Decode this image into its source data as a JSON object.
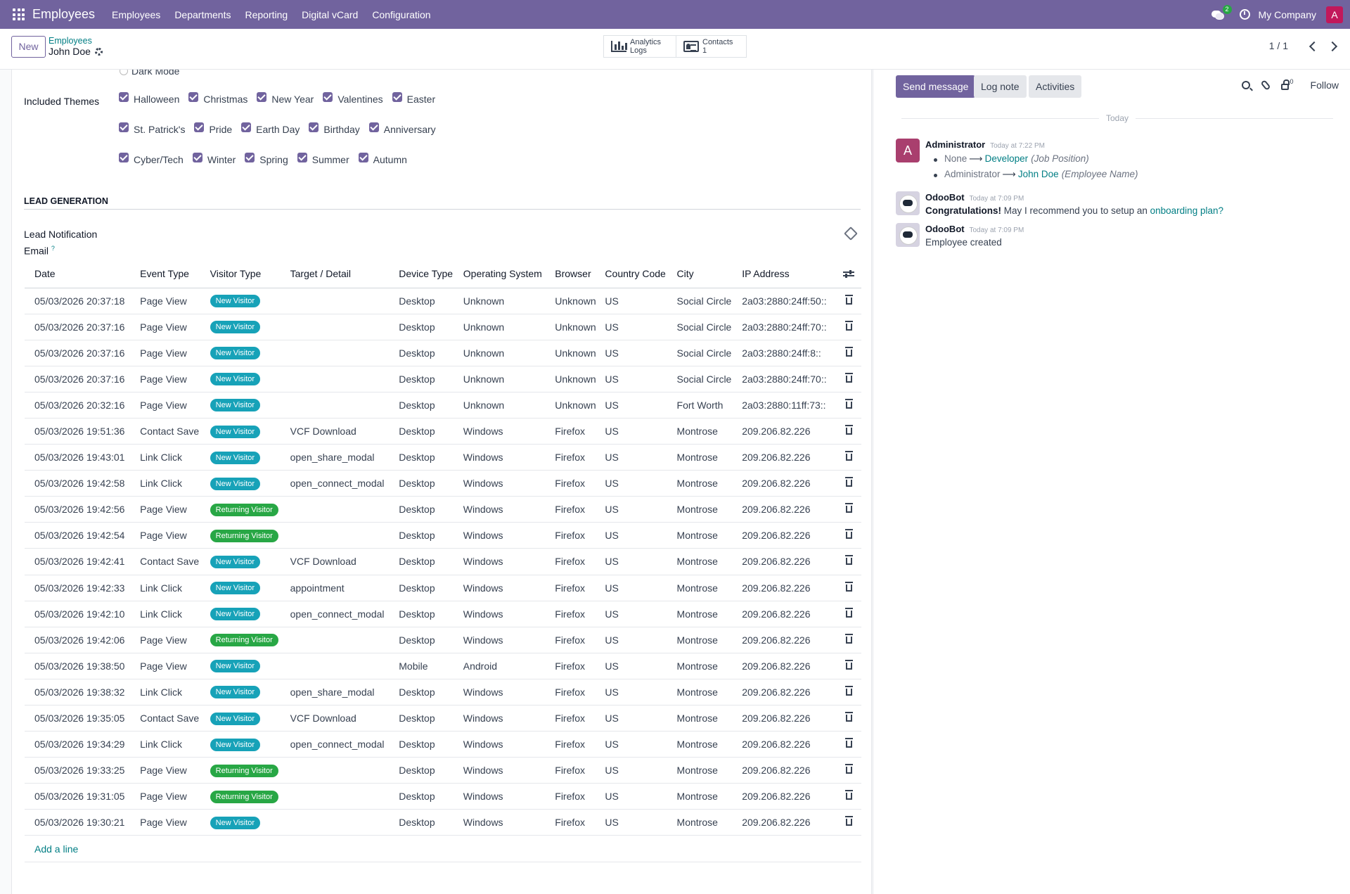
{
  "topbar": {
    "app_name": "Employees",
    "menu": [
      "Employees",
      "Departments",
      "Reporting",
      "Digital vCard",
      "Configuration"
    ],
    "chat_badge": "2",
    "company": "My Company",
    "user_initial": "A"
  },
  "control": {
    "new_label": "New",
    "breadcrumb_parent": "Employees",
    "record_name": "John Doe",
    "smart_buttons": [
      {
        "line1": "Analytics",
        "line2": "Logs"
      },
      {
        "line1": "Contacts",
        "line2": "1"
      }
    ],
    "pager": "1 / 1"
  },
  "form": {
    "dark_mode_label": "Dark Mode",
    "themes_label": "Included Themes",
    "theme_rows": [
      [
        "Halloween",
        "Christmas",
        "New Year",
        "Valentines",
        "Easter"
      ],
      [
        "St. Patrick's",
        "Pride",
        "Earth Day",
        "Birthday",
        "Anniversary"
      ],
      [
        "Cyber/Tech",
        "Winter",
        "Spring",
        "Summer",
        "Autumn"
      ]
    ],
    "section_title": "LEAD GENERATION",
    "lead_label_line1": "Lead Notification",
    "lead_label_line2": "Email",
    "lead_help": "?",
    "columns": [
      "Date",
      "Event Type",
      "Visitor Type",
      "Target / Detail",
      "Device Type",
      "Operating System",
      "Browser",
      "Country Code",
      "City",
      "IP Address"
    ],
    "rows": [
      [
        "05/03/2026 20:37:18",
        "Page View",
        "New Visitor",
        "",
        "Desktop",
        "Unknown",
        "Unknown",
        "US",
        "Social Circle",
        "2a03:2880:24ff:50::"
      ],
      [
        "05/03/2026 20:37:16",
        "Page View",
        "New Visitor",
        "",
        "Desktop",
        "Unknown",
        "Unknown",
        "US",
        "Social Circle",
        "2a03:2880:24ff:70::"
      ],
      [
        "05/03/2026 20:37:16",
        "Page View",
        "New Visitor",
        "",
        "Desktop",
        "Unknown",
        "Unknown",
        "US",
        "Social Circle",
        "2a03:2880:24ff:8::"
      ],
      [
        "05/03/2026 20:37:16",
        "Page View",
        "New Visitor",
        "",
        "Desktop",
        "Unknown",
        "Unknown",
        "US",
        "Social Circle",
        "2a03:2880:24ff:70::"
      ],
      [
        "05/03/2026 20:32:16",
        "Page View",
        "New Visitor",
        "",
        "Desktop",
        "Unknown",
        "Unknown",
        "US",
        "Fort Worth",
        "2a03:2880:11ff:73::"
      ],
      [
        "05/03/2026 19:51:36",
        "Contact Save",
        "New Visitor",
        "VCF Download",
        "Desktop",
        "Windows",
        "Firefox",
        "US",
        "Montrose",
        "209.206.82.226"
      ],
      [
        "05/03/2026 19:43:01",
        "Link Click",
        "New Visitor",
        "open_share_modal",
        "Desktop",
        "Windows",
        "Firefox",
        "US",
        "Montrose",
        "209.206.82.226"
      ],
      [
        "05/03/2026 19:42:58",
        "Link Click",
        "New Visitor",
        "open_connect_modal",
        "Desktop",
        "Windows",
        "Firefox",
        "US",
        "Montrose",
        "209.206.82.226"
      ],
      [
        "05/03/2026 19:42:56",
        "Page View",
        "Returning Visitor",
        "",
        "Desktop",
        "Windows",
        "Firefox",
        "US",
        "Montrose",
        "209.206.82.226"
      ],
      [
        "05/03/2026 19:42:54",
        "Page View",
        "Returning Visitor",
        "",
        "Desktop",
        "Windows",
        "Firefox",
        "US",
        "Montrose",
        "209.206.82.226"
      ],
      [
        "05/03/2026 19:42:41",
        "Contact Save",
        "New Visitor",
        "VCF Download",
        "Desktop",
        "Windows",
        "Firefox",
        "US",
        "Montrose",
        "209.206.82.226"
      ],
      [
        "05/03/2026 19:42:33",
        "Link Click",
        "New Visitor",
        "appointment",
        "Desktop",
        "Windows",
        "Firefox",
        "US",
        "Montrose",
        "209.206.82.226"
      ],
      [
        "05/03/2026 19:42:10",
        "Link Click",
        "New Visitor",
        "open_connect_modal",
        "Desktop",
        "Windows",
        "Firefox",
        "US",
        "Montrose",
        "209.206.82.226"
      ],
      [
        "05/03/2026 19:42:06",
        "Page View",
        "Returning Visitor",
        "",
        "Desktop",
        "Windows",
        "Firefox",
        "US",
        "Montrose",
        "209.206.82.226"
      ],
      [
        "05/03/2026 19:38:50",
        "Page View",
        "New Visitor",
        "",
        "Mobile",
        "Android",
        "Firefox",
        "US",
        "Montrose",
        "209.206.82.226"
      ],
      [
        "05/03/2026 19:38:32",
        "Link Click",
        "New Visitor",
        "open_share_modal",
        "Desktop",
        "Windows",
        "Firefox",
        "US",
        "Montrose",
        "209.206.82.226"
      ],
      [
        "05/03/2026 19:35:05",
        "Contact Save",
        "New Visitor",
        "VCF Download",
        "Desktop",
        "Windows",
        "Firefox",
        "US",
        "Montrose",
        "209.206.82.226"
      ],
      [
        "05/03/2026 19:34:29",
        "Link Click",
        "New Visitor",
        "open_connect_modal",
        "Desktop",
        "Windows",
        "Firefox",
        "US",
        "Montrose",
        "209.206.82.226"
      ],
      [
        "05/03/2026 19:33:25",
        "Page View",
        "Returning Visitor",
        "",
        "Desktop",
        "Windows",
        "Firefox",
        "US",
        "Montrose",
        "209.206.82.226"
      ],
      [
        "05/03/2026 19:31:05",
        "Page View",
        "Returning Visitor",
        "",
        "Desktop",
        "Windows",
        "Firefox",
        "US",
        "Montrose",
        "209.206.82.226"
      ],
      [
        "05/03/2026 19:30:21",
        "Page View",
        "New Visitor",
        "",
        "Desktop",
        "Windows",
        "Firefox",
        "US",
        "Montrose",
        "209.206.82.226"
      ]
    ],
    "add_line": "Add a line",
    "badge_colors": {
      "New Visitor": "#17a2b8",
      "Returning Visitor": "#28a745"
    }
  },
  "chatter": {
    "send_message": "Send message",
    "log_note": "Log note",
    "activities": "Activities",
    "follower_count": "0",
    "follow": "Follow",
    "date_separator": "Today",
    "messages": [
      {
        "author": "Administrator",
        "avatar_initial": "A",
        "timestamp": "Today at 7:22 PM",
        "tracking": [
          {
            "old": "None",
            "new": "Developer",
            "field": "(Job Position)"
          },
          {
            "old": "Administrator",
            "new": "John Doe",
            "field": "(Employee Name)"
          }
        ]
      },
      {
        "author": "OdooBot",
        "timestamp": "Today at 7:09 PM",
        "bold": "Congratulations!",
        "text": "May I recommend you to setup an",
        "link": "onboarding plan?"
      },
      {
        "author": "OdooBot",
        "timestamp": "Today at 7:09 PM",
        "text": "Employee created"
      }
    ]
  },
  "colors": {
    "brand": "#71639e",
    "link": "#017e84"
  }
}
